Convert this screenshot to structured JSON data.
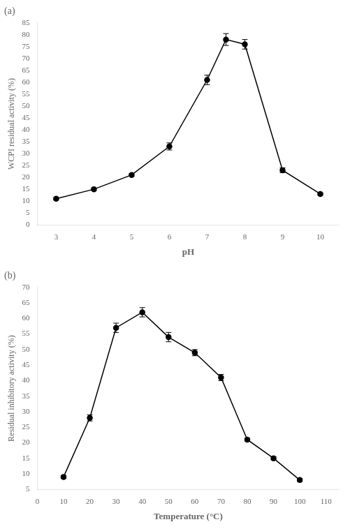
{
  "chart_data": [
    {
      "type": "line",
      "title": "(a)",
      "x": [
        3,
        4,
        5,
        6,
        7,
        7.5,
        8,
        9,
        10
      ],
      "values": [
        11,
        15,
        21,
        33,
        61,
        78,
        76,
        23,
        13
      ],
      "yerr": [
        0.5,
        0.5,
        0.5,
        1.5,
        2.0,
        2.5,
        2.0,
        1.0,
        0.5
      ],
      "xlabel": "pH",
      "ylabel": "WCPI residual activity (%)",
      "xlim": [
        2.5,
        10.5
      ],
      "xticks": [
        3,
        4,
        5,
        6,
        7,
        8,
        9,
        10
      ],
      "ylim": [
        0,
        85
      ],
      "yticks": [
        0,
        5,
        10,
        15,
        20,
        25,
        30,
        35,
        40,
        45,
        50,
        55,
        60,
        65,
        70,
        75,
        80,
        85
      ],
      "color": "#000000",
      "marker": "circle",
      "line_style": "solid",
      "grid": false
    },
    {
      "type": "line",
      "title": "(b)",
      "x": [
        10,
        20,
        30,
        40,
        50,
        60,
        70,
        80,
        90,
        100
      ],
      "values": [
        9,
        28,
        57,
        62,
        54,
        49,
        41,
        21,
        15,
        8
      ],
      "yerr": [
        0.5,
        1.0,
        1.5,
        1.5,
        1.5,
        1.0,
        1.0,
        0.5,
        0.5,
        0.5
      ],
      "xlabel": "Temperature (°C)",
      "ylabel": "Residual inhibitory activity (%)",
      "xlim": [
        0,
        115
      ],
      "xticks": [
        0,
        10,
        20,
        30,
        40,
        50,
        60,
        70,
        80,
        90,
        100,
        110
      ],
      "ylim": [
        5,
        70
      ],
      "yticks": [
        5,
        10,
        15,
        20,
        25,
        30,
        35,
        40,
        45,
        50,
        55,
        60,
        65,
        70
      ],
      "color": "#000000",
      "marker": "circle",
      "line_style": "solid",
      "grid": false
    }
  ]
}
